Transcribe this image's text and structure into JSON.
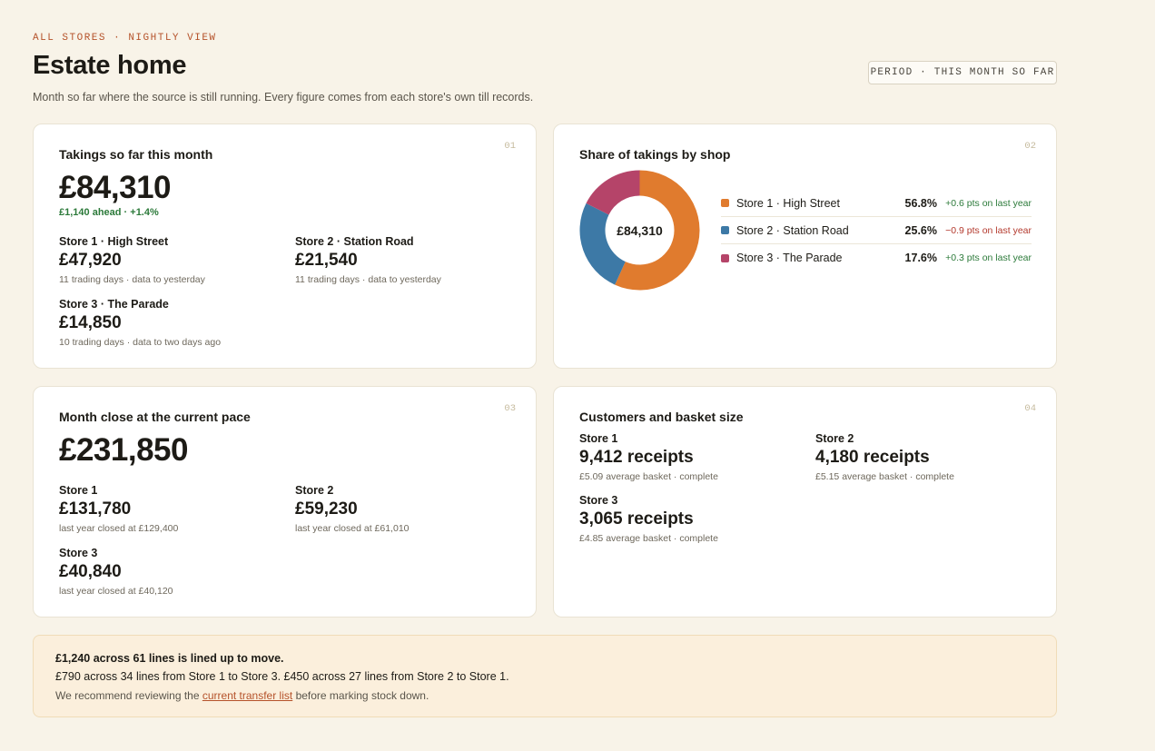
{
  "header": {
    "eyebrow": "ALL STORES · NIGHTLY VIEW",
    "title": "Estate home",
    "subtitle": "Month so far where the source is still running. Every figure comes from each store's own till records.",
    "period_chip": "PERIOD · THIS MONTH SO FAR"
  },
  "takings": {
    "num": "01",
    "title": "Takings so far this month",
    "total": "£84,310",
    "delta": "£1,140 ahead · +1.4%",
    "stores": [
      {
        "name": "Store 1 · High Street",
        "value": "£47,920",
        "note": "11 trading days · data to yesterday"
      },
      {
        "name": "Store 2 · Station Road",
        "value": "£21,540",
        "note": "11 trading days · data to yesterday"
      },
      {
        "name": "Store 3 · The Parade",
        "value": "£14,850",
        "note": "10 trading days · data to two days ago"
      }
    ]
  },
  "share": {
    "num": "02",
    "title": "Share of takings by shop",
    "center_label": "£84,310",
    "rows": [
      {
        "label": "Store 1 · High Street",
        "pct": "56.8%",
        "change": "+0.6 pts on last year",
        "trend": "up"
      },
      {
        "label": "Store 2 · Station Road",
        "pct": "25.6%",
        "change": "−0.9 pts on last year",
        "trend": "down"
      },
      {
        "label": "Store 3 · The Parade",
        "pct": "17.6%",
        "change": "+0.3 pts on last year",
        "trend": "up"
      }
    ]
  },
  "chart_data": {
    "type": "pie",
    "categories": [
      "Store 1 · High Street",
      "Store 2 · Station Road",
      "Store 3 · The Parade"
    ],
    "values": [
      56.8,
      25.6,
      17.6
    ],
    "colors": [
      "#e07b2e",
      "#3d79a6",
      "#b54469"
    ],
    "donut": true,
    "center_text": "£84,310"
  },
  "pace": {
    "num": "03",
    "title": "Month close at the current pace",
    "total": "£231,850",
    "stores": [
      {
        "name": "Store 1",
        "value": "£131,780",
        "note": "last year closed at £129,400"
      },
      {
        "name": "Store 2",
        "value": "£59,230",
        "note": "last year closed at £61,010"
      },
      {
        "name": "Store 3",
        "value": "£40,840",
        "note": "last year closed at £40,120"
      }
    ]
  },
  "customers": {
    "num": "04",
    "title": "Customers and basket size",
    "stores": [
      {
        "name": "Store 1",
        "receipts": "9,412 receipts",
        "note": "£5.09 average basket · complete"
      },
      {
        "name": "Store 2",
        "receipts": "4,180 receipts",
        "note": "£5.15 average basket · complete"
      },
      {
        "name": "Store 3",
        "receipts": "3,065 receipts",
        "note": "£4.85 average basket · complete"
      }
    ]
  },
  "banner": {
    "headline": "£1,240 across 61 lines is lined up to move.",
    "detail": "£790 across 34 lines from Store 1 to Store 3. £450 across 27 lines from Store 2 to Store 1.",
    "rec_before": "We recommend reviewing the ",
    "rec_link": "current transfer list",
    "rec_after": " before marking stock down."
  }
}
